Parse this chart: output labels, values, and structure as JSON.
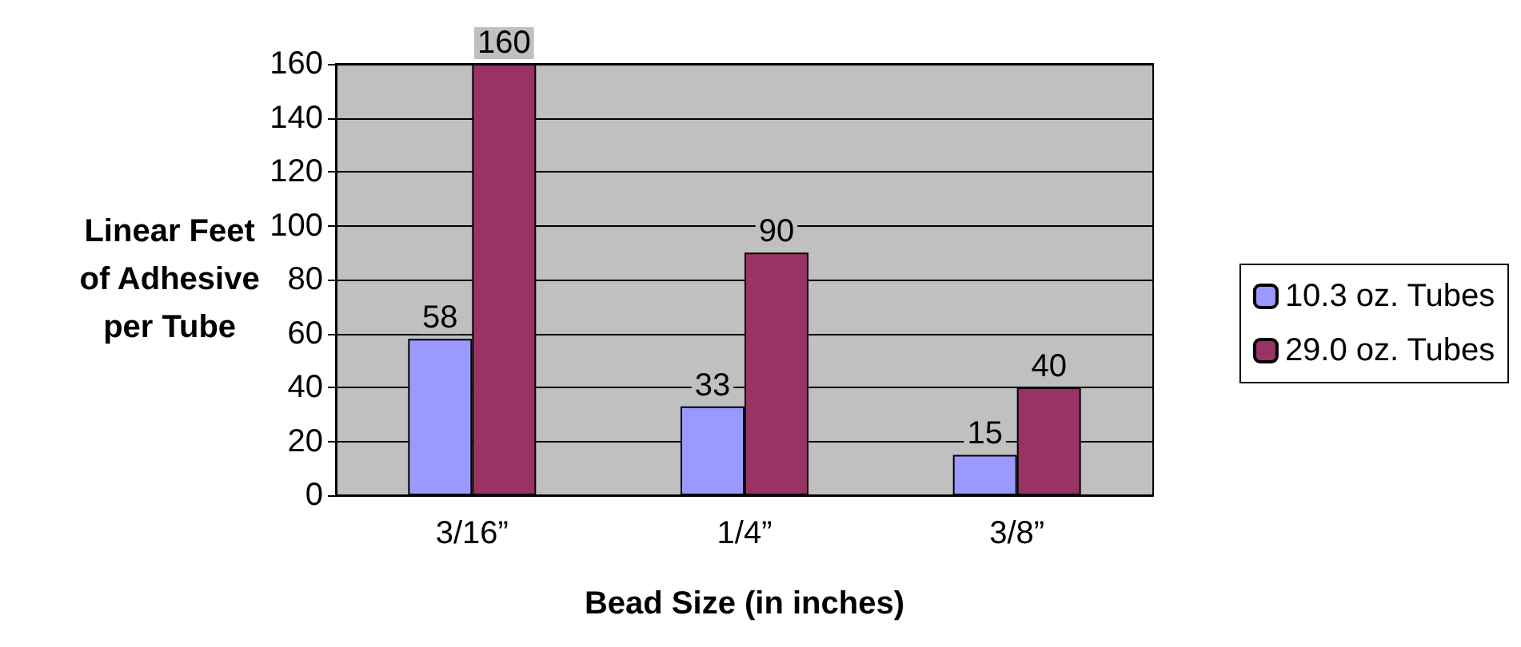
{
  "chart_data": {
    "type": "bar",
    "xlabel": "Bead Size (in inches)",
    "ylabel": "Linear Feet of Adhesive per Tube",
    "categories": [
      "3/16”",
      "1/4”",
      "3/8”"
    ],
    "series": [
      {
        "name": "10.3 oz. Tubes",
        "color": "#9999ff",
        "values": [
          58,
          33,
          15
        ]
      },
      {
        "name": "29.0 oz. Tubes",
        "color": "#993366",
        "values": [
          160,
          90,
          40
        ]
      }
    ],
    "ylim": [
      0,
      160
    ],
    "yticks": [
      0,
      20,
      40,
      60,
      80,
      100,
      120,
      140,
      160
    ],
    "grid": "y",
    "legend": "right",
    "data_labels": true
  }
}
